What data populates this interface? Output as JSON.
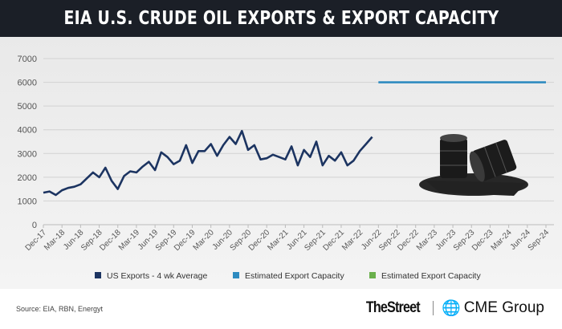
{
  "title": "EIA U.S. CRUDE OIL EXPORTS & EXPORT CAPACITY",
  "source": "Source: EIA, RBN, Energyt",
  "brands": {
    "thestreet": "TheStreet",
    "cme": "CME Group"
  },
  "chart_data": {
    "type": "line",
    "title": "EIA U.S. Crude Oil Exports & Export Capacity",
    "ylim": [
      0,
      7000
    ],
    "yticks": [
      "0",
      "1000",
      "2000",
      "3000",
      "4000",
      "5000",
      "6000",
      "7000"
    ],
    "xticks": [
      "Dec-17",
      "Mar-18",
      "Jun-18",
      "Sep-18",
      "Dec-18",
      "Mar-19",
      "Jun-19",
      "Sep-19",
      "Dec-19",
      "Mar-20",
      "Jun-20",
      "Sep-20",
      "Dec-20",
      "Mar-21",
      "Jun-21",
      "Sep-21",
      "Dec-21",
      "Mar-22",
      "Jun-22",
      "Sep-22",
      "Dec-22",
      "Mar-23",
      "Jun-23",
      "Sep-23",
      "Dec-23",
      "Mar-24",
      "Jun-24",
      "Sep-24"
    ],
    "grid": true,
    "legend_position": "bottom",
    "series": [
      {
        "name": "US Exports - 4 wk Average",
        "color": "#1c3461",
        "x_start_month_index": 0,
        "values": [
          1350,
          1400,
          1250,
          1450,
          1550,
          1600,
          1700,
          1950,
          2200,
          2000,
          2400,
          1850,
          1500,
          2050,
          2250,
          2200,
          2450,
          2650,
          2300,
          3050,
          2850,
          2550,
          2700,
          3350,
          2600,
          3100,
          3100,
          3400,
          2900,
          3350,
          3700,
          3400,
          3950,
          3150,
          3350,
          2750,
          2800,
          2950,
          2850,
          2750,
          3300,
          2500,
          3150,
          2850,
          3500,
          2500,
          2900,
          2700,
          3050,
          2500,
          2700,
          3100,
          3400,
          3700
        ],
        "frequency": "monthly"
      },
      {
        "name": "Estimated Export Capacity",
        "color": "#2e8bc0",
        "x_range_months": [
          54,
          81
        ],
        "value": 6000
      },
      {
        "name": "Estimated Export Capacity",
        "color": "#6ab04c",
        "values": []
      }
    ]
  }
}
